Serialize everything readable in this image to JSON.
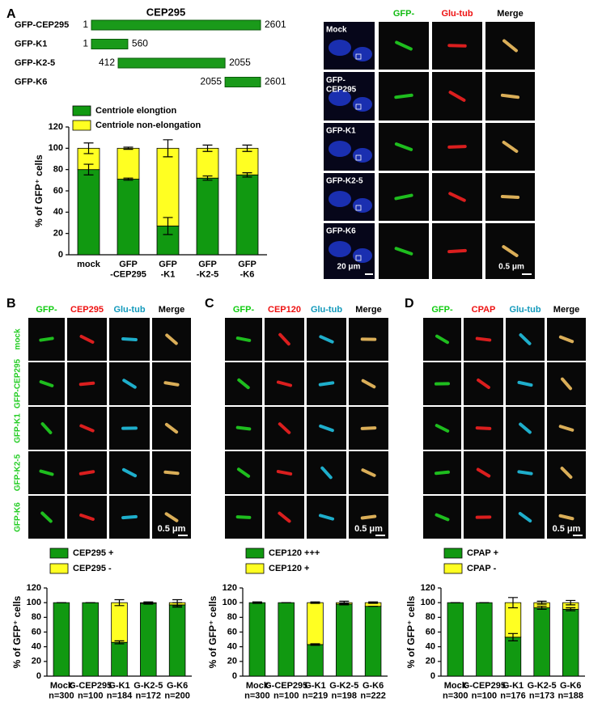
{
  "panel_labels": [
    "A",
    "B",
    "C",
    "D"
  ],
  "domains": {
    "title": "CEP295",
    "constructs": [
      {
        "name": "GFP-CEP295",
        "start": 1,
        "end": 2601
      },
      {
        "name": "GFP-K1",
        "start": 1,
        "end": 560
      },
      {
        "name": "GFP-K2-5",
        "start": 412,
        "end": 2055
      },
      {
        "name": "GFP-K6",
        "start": 2055,
        "end": 2601
      }
    ]
  },
  "panel_a_images": {
    "columns": [
      "GFP-",
      "Glu-tub",
      "Merge"
    ],
    "rows": [
      "Mock",
      "GFP-\nCEP295",
      "GFP-K1",
      "GFP-K2-5",
      "GFP-K6"
    ],
    "scale_bars": [
      "20 μm",
      "0.5 μm"
    ]
  },
  "panel_b_images": {
    "columns": [
      "GFP-",
      "CEP295",
      "Glu-tub",
      "Merge"
    ],
    "rows": [
      "mock",
      "GFP-CEP295",
      "GFP-K1",
      "GFP-K2-5",
      "GFP-K6"
    ],
    "scale_bar": "0.5 μm"
  },
  "panel_c_images": {
    "columns": [
      "GFP-",
      "CEP120",
      "Glu-tub",
      "Merge"
    ],
    "scale_bar": "0.5 μm"
  },
  "panel_d_images": {
    "columns": [
      "GFP-",
      "CPAP",
      "Glu-tub",
      "Merge"
    ],
    "scale_bar": "0.5 μm"
  },
  "chart_data": [
    {
      "type": "bar",
      "stacked": true,
      "y_label": "% of GFP⁺ cells",
      "categories": [
        "mock",
        "GFP\n-CEP295",
        "GFP\n-K1",
        "GFP\n-K2-5",
        "GFP\n-K6"
      ],
      "series": [
        {
          "name": "Centriole elongtion",
          "color": "#119911",
          "values": [
            80,
            71,
            27,
            72,
            75
          ],
          "errors": [
            5,
            1,
            8,
            2,
            2
          ]
        },
        {
          "name": "Centriole non-elongation",
          "color": "#ffff22",
          "values": [
            20,
            29,
            73,
            28,
            25
          ],
          "errors": [
            5,
            1,
            8,
            3,
            3
          ]
        }
      ],
      "ylim": [
        0,
        120
      ],
      "yticks": [
        0,
        20,
        40,
        60,
        80,
        100,
        120
      ]
    },
    {
      "type": "bar",
      "stacked": true,
      "y_label": "% of GFP⁺ cells",
      "categories": [
        "Mock\nn=300",
        "G-CEP295\nn=100",
        "G-K1\nn=184",
        "G-K2-5\nn=172",
        "G-K6\nn=200"
      ],
      "series": [
        {
          "name": "CEP295 +",
          "color": "#119911",
          "values": [
            100,
            100,
            46,
            99,
            97
          ],
          "errors": [
            0,
            0,
            2,
            1,
            3
          ]
        },
        {
          "name": "CEP295 -",
          "color": "#ffff22",
          "values": [
            0,
            0,
            54,
            1,
            3
          ],
          "errors": [
            0,
            0,
            4,
            1,
            4
          ]
        }
      ],
      "ylim": [
        0,
        120
      ],
      "yticks": [
        0,
        20,
        40,
        60,
        80,
        100,
        120
      ]
    },
    {
      "type": "bar",
      "stacked": true,
      "y_label": "% of GFP⁺ cells",
      "categories": [
        "Mock\nn=300",
        "G-CEP295\nn=100",
        "G-K1\nn=219",
        "G-K2-5\nn=198",
        "G-K6\nn=222"
      ],
      "series": [
        {
          "name": "CEP120 +++",
          "color": "#119911",
          "values": [
            100,
            100,
            43,
            98,
            95
          ],
          "errors": [
            1,
            0,
            1,
            1,
            0
          ]
        },
        {
          "name": "CEP120 +",
          "color": "#ffff22",
          "values": [
            0,
            0,
            57,
            2,
            5
          ],
          "errors": [
            0,
            0,
            1,
            2,
            1
          ]
        }
      ],
      "ylim": [
        0,
        120
      ],
      "yticks": [
        0,
        20,
        40,
        60,
        80,
        100,
        120
      ]
    },
    {
      "type": "bar",
      "stacked": true,
      "y_label": "% of GFP⁺ cells",
      "categories": [
        "Mock\nn=300",
        "G-CEP295\nn=100",
        "G-K1\nn=176",
        "G-K2-5\nn=173",
        "G-K6\nn=188"
      ],
      "series": [
        {
          "name": "CPAP +",
          "color": "#119911",
          "values": [
            100,
            100,
            53,
            93,
            91
          ],
          "errors": [
            0,
            0,
            5,
            2,
            2
          ]
        },
        {
          "name": "CPAP -",
          "color": "#ffff22",
          "values": [
            0,
            0,
            47,
            7,
            9
          ],
          "errors": [
            0,
            0,
            7,
            2,
            3
          ]
        }
      ],
      "ylim": [
        0,
        120
      ],
      "yticks": [
        0,
        20,
        40,
        60,
        80,
        100,
        120
      ]
    }
  ]
}
